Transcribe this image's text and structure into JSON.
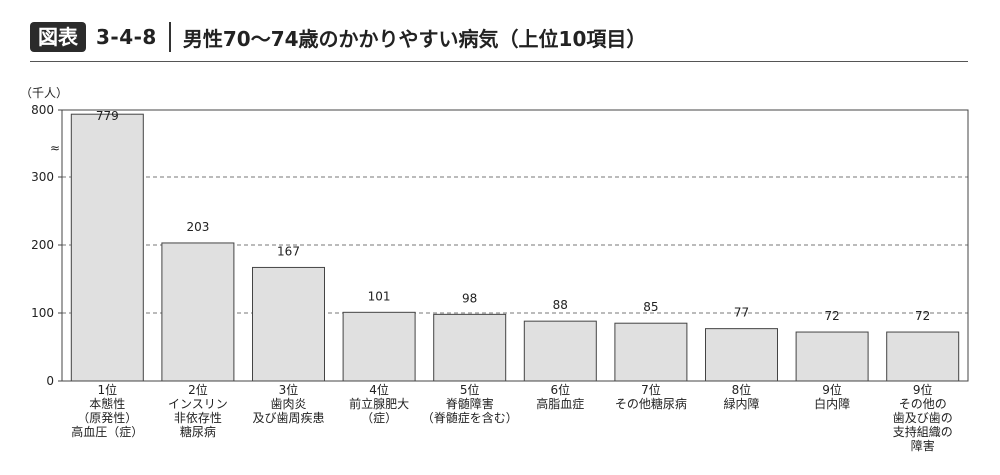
{
  "header": {
    "badge": "図表",
    "fig_number": "3-4-8",
    "title": "男性70〜74歳のかかりやすい病気（上位10項目）"
  },
  "chart_data": {
    "type": "bar",
    "unit_label": "（千人）",
    "y_ticks": [
      "0",
      "100",
      "200",
      "300",
      "800"
    ],
    "axis_break": "≈",
    "grid": "dashed",
    "categories": [
      [
        "1位",
        "本態性",
        "（原発性）",
        "高血圧（症）"
      ],
      [
        "2位",
        "インスリン",
        "非依存性",
        "糖尿病"
      ],
      [
        "3位",
        "歯肉炎",
        "及び歯周疾患"
      ],
      [
        "4位",
        "前立腺肥大",
        "（症）"
      ],
      [
        "5位",
        "脊髄障害",
        "（脊髄症を含む）"
      ],
      [
        "6位",
        "高脂血症"
      ],
      [
        "7位",
        "その他糖尿病"
      ],
      [
        "8位",
        "緑内障"
      ],
      [
        "9位",
        "白内障"
      ],
      [
        "9位",
        "その他の",
        "歯及び歯の",
        "支持組織の",
        "障害"
      ]
    ],
    "values": [
      779,
      203,
      167,
      101,
      98,
      88,
      85,
      77,
      72,
      72
    ],
    "colors": {
      "bar_fill": "#e0e0e0",
      "bar_stroke": "#444444"
    }
  }
}
